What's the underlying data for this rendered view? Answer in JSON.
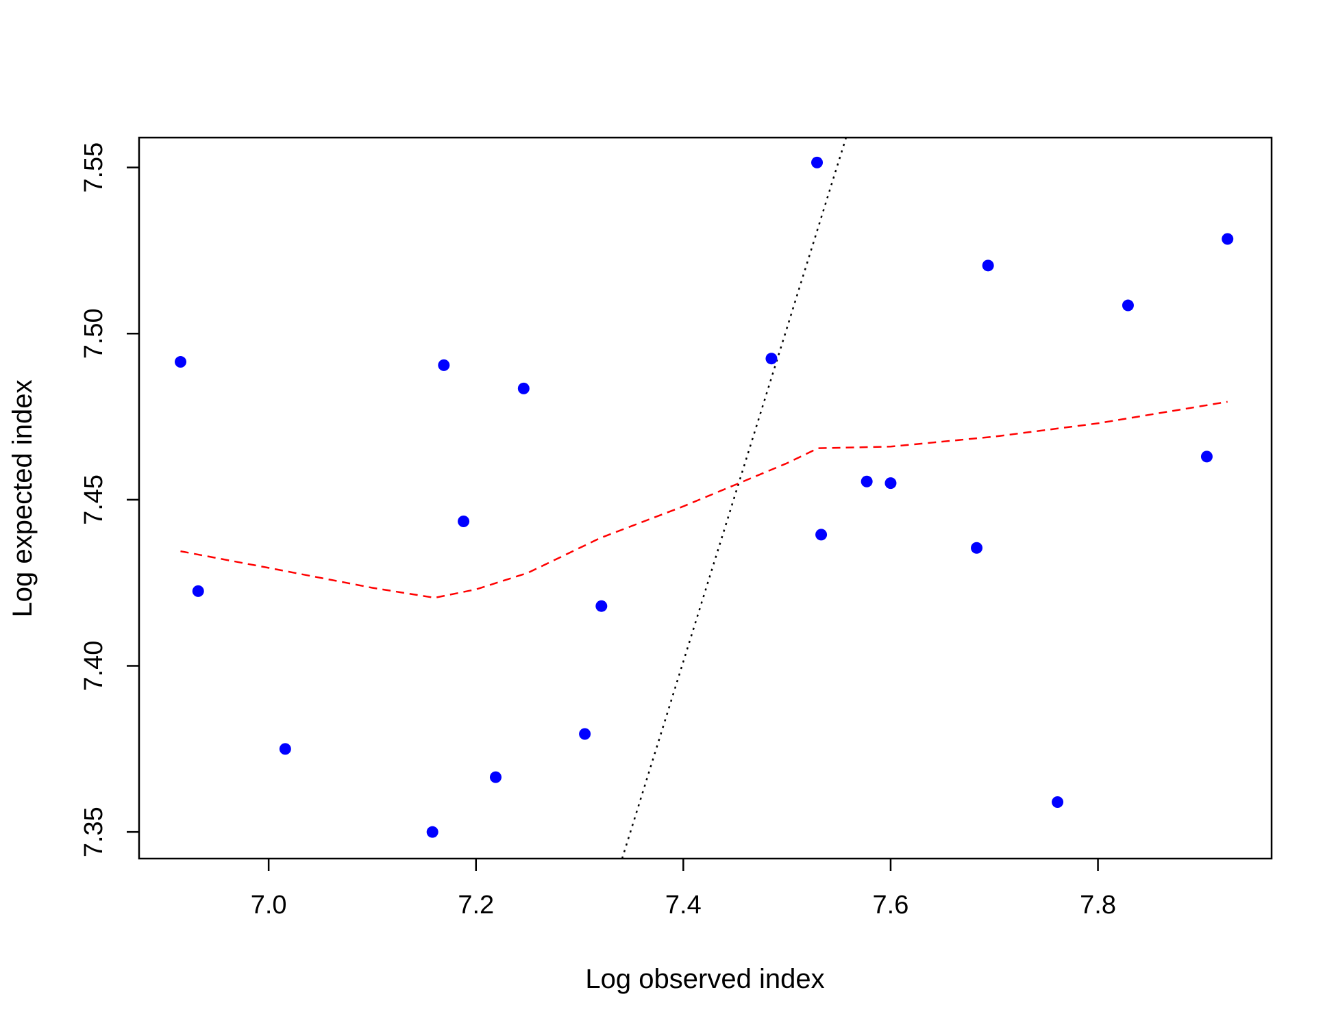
{
  "chart_data": {
    "type": "scatter",
    "title": "",
    "xlabel": "Log observed index",
    "ylabel": "Log expected index",
    "xlim": [
      6.875,
      7.9675
    ],
    "ylim": [
      7.342,
      7.559
    ],
    "x_ticks": [
      {
        "value": 7.0,
        "label": "7.0"
      },
      {
        "value": 7.2,
        "label": "7.2"
      },
      {
        "value": 7.4,
        "label": "7.4"
      },
      {
        "value": 7.6,
        "label": "7.6"
      },
      {
        "value": 7.8,
        "label": "7.8"
      }
    ],
    "y_ticks": [
      {
        "value": 7.35,
        "label": "7.35"
      },
      {
        "value": 7.4,
        "label": "7.40"
      },
      {
        "value": 7.45,
        "label": "7.45"
      },
      {
        "value": 7.5,
        "label": "7.50"
      },
      {
        "value": 7.55,
        "label": "7.55"
      }
    ],
    "grid": false,
    "points": {
      "color": "#0000ff",
      "x": [
        6.915,
        6.932,
        7.016,
        7.158,
        7.169,
        7.188,
        7.219,
        7.246,
        7.305,
        7.321,
        7.485,
        7.529,
        7.533,
        7.577,
        7.6,
        7.683,
        7.694,
        7.761,
        7.829,
        7.905,
        7.925
      ],
      "y": [
        7.4915,
        7.4225,
        7.375,
        7.35,
        7.4905,
        7.4435,
        7.3665,
        7.4835,
        7.3795,
        7.418,
        7.4925,
        7.5515,
        7.4395,
        7.4555,
        7.455,
        7.4355,
        7.5205,
        7.359,
        7.5085,
        7.463,
        7.5285
      ]
    },
    "reference_line": {
      "style": "dotted",
      "color": "#000000",
      "x": [
        7.341,
        7.557
      ],
      "y": [
        7.342,
        7.559
      ]
    },
    "smooth_line": {
      "style": "dashed",
      "color": "#ff0000",
      "x": [
        6.915,
        7.0,
        7.1,
        7.16,
        7.2,
        7.25,
        7.32,
        7.4,
        7.45,
        7.5,
        7.53,
        7.6,
        7.7,
        7.8,
        7.925
      ],
      "y": [
        7.4345,
        7.4295,
        7.4235,
        7.4205,
        7.423,
        7.428,
        7.4385,
        7.448,
        7.4545,
        7.461,
        7.4655,
        7.466,
        7.469,
        7.473,
        7.4795
      ]
    }
  }
}
